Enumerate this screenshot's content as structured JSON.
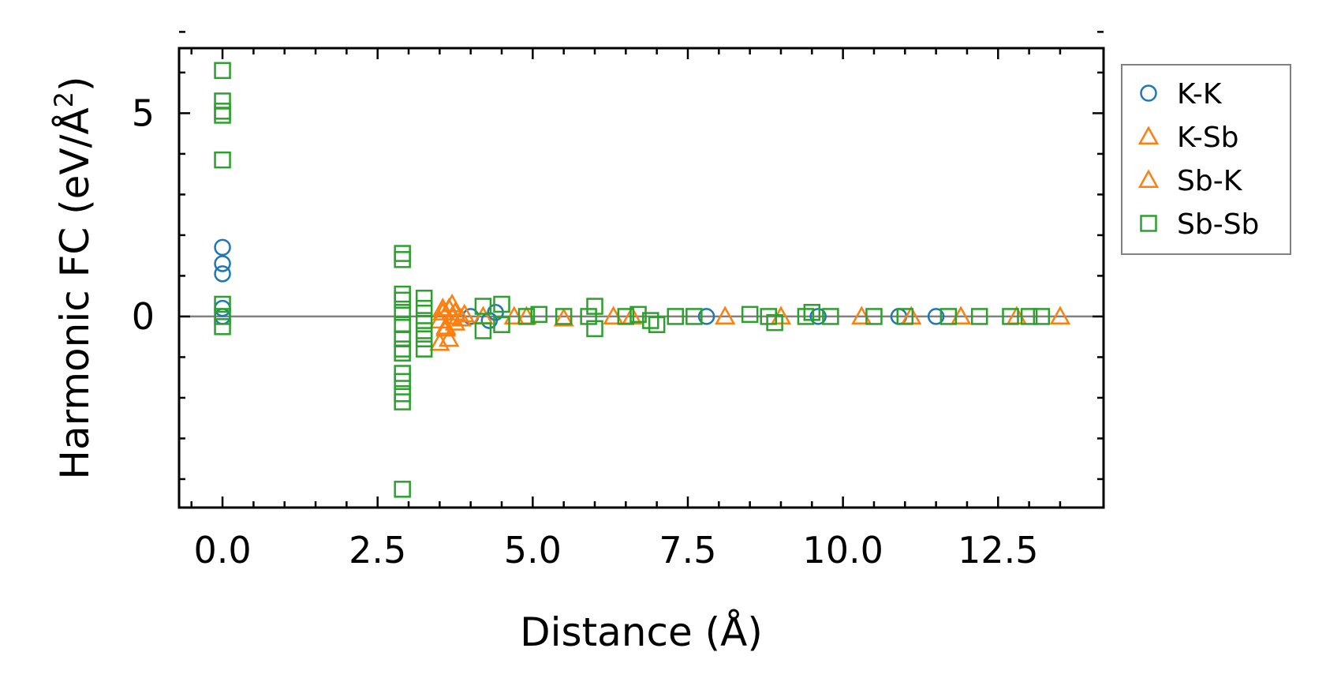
{
  "chart_data": {
    "type": "scatter",
    "title": "",
    "xlabel": "Distance (Å)",
    "ylabel_main": "Harmonic FC (eV/Å",
    "ylabel_sup": "2",
    "ylabel_close": ")",
    "xlim": [
      -0.7,
      14.2
    ],
    "ylim": [
      -4.7,
      6.6
    ],
    "x_ticks": [
      0.0,
      2.5,
      5.0,
      7.5,
      10.0,
      12.5
    ],
    "x_tick_labels": [
      "0.0",
      "2.5",
      "5.0",
      "7.5",
      "10.0",
      "12.5"
    ],
    "y_ticks": [
      0,
      5
    ],
    "y_tick_labels": [
      "0",
      "5"
    ],
    "grid": false,
    "zero_line": true,
    "legend_position": "outside-right-top",
    "series": [
      {
        "name": "K-K",
        "marker": "circle",
        "color": "#1f77b4",
        "points": [
          [
            0,
            1.7
          ],
          [
            0,
            1.3
          ],
          [
            0,
            1.05
          ],
          [
            0,
            0.2
          ],
          [
            0,
            0.0
          ],
          [
            4.0,
            0.0
          ],
          [
            4.3,
            -0.1
          ],
          [
            4.4,
            0.1
          ],
          [
            7.8,
            0.0
          ],
          [
            9.6,
            0.0
          ],
          [
            10.9,
            0.0
          ],
          [
            11.5,
            0.0
          ]
        ]
      },
      {
        "name": "K-Sb",
        "marker": "triangle",
        "color": "#ff7f0e",
        "points": [
          [
            3.5,
            -0.1
          ],
          [
            3.55,
            0.1
          ],
          [
            3.6,
            -0.25
          ],
          [
            3.65,
            0.2
          ],
          [
            3.7,
            0.0
          ],
          [
            3.75,
            -0.15
          ],
          [
            3.5,
            -0.65
          ],
          [
            3.65,
            -0.55
          ],
          [
            3.9,
            0.05
          ],
          [
            4.7,
            0.0
          ],
          [
            5.5,
            -0.05
          ],
          [
            6.3,
            0.0
          ],
          [
            8.1,
            0.0
          ],
          [
            10.3,
            0.0
          ],
          [
            11.9,
            0.0
          ]
        ]
      },
      {
        "name": "Sb-K",
        "marker": "triangle",
        "color": "#ff7f0e",
        "points": [
          [
            3.55,
            0.2
          ],
          [
            3.7,
            0.3
          ],
          [
            3.6,
            -0.3
          ],
          [
            3.75,
            0.1
          ],
          [
            3.85,
            -0.05
          ],
          [
            4.2,
            0.0
          ],
          [
            4.9,
            0.0
          ],
          [
            6.6,
            0.0
          ],
          [
            9.0,
            0.0
          ],
          [
            11.1,
            0.0
          ],
          [
            12.8,
            0.0
          ],
          [
            13.5,
            0.0
          ]
        ]
      },
      {
        "name": "Sb-Sb",
        "marker": "square",
        "color": "#2ca02c",
        "points": [
          [
            0,
            6.05
          ],
          [
            0,
            5.3
          ],
          [
            0,
            5.05
          ],
          [
            0,
            4.95
          ],
          [
            0,
            3.85
          ],
          [
            0,
            0.3
          ],
          [
            0,
            0.0
          ],
          [
            0,
            -0.25
          ],
          [
            2.9,
            1.55
          ],
          [
            2.9,
            1.4
          ],
          [
            2.9,
            0.55
          ],
          [
            2.9,
            0.4
          ],
          [
            2.9,
            0.1
          ],
          [
            2.9,
            -0.2
          ],
          [
            2.9,
            -0.55
          ],
          [
            2.9,
            -0.8
          ],
          [
            2.9,
            -0.9
          ],
          [
            2.9,
            -1.4
          ],
          [
            2.9,
            -1.6
          ],
          [
            2.9,
            -1.9
          ],
          [
            2.9,
            -2.1
          ],
          [
            2.9,
            -4.25
          ],
          [
            3.25,
            0.45
          ],
          [
            3.25,
            0.2
          ],
          [
            3.25,
            -0.1
          ],
          [
            3.25,
            -0.35
          ],
          [
            3.25,
            -0.55
          ],
          [
            3.25,
            -0.8
          ],
          [
            4.2,
            0.25
          ],
          [
            4.2,
            -0.35
          ],
          [
            4.5,
            0.3
          ],
          [
            4.5,
            -0.2
          ],
          [
            4.9,
            0.0
          ],
          [
            5.1,
            0.05
          ],
          [
            5.5,
            0.0
          ],
          [
            5.9,
            0.0
          ],
          [
            6.0,
            0.25
          ],
          [
            6.0,
            -0.3
          ],
          [
            6.5,
            0.0
          ],
          [
            6.7,
            0.05
          ],
          [
            6.9,
            -0.1
          ],
          [
            7.0,
            -0.2
          ],
          [
            7.3,
            0.0
          ],
          [
            7.6,
            0.0
          ],
          [
            8.5,
            0.05
          ],
          [
            8.8,
            0.0
          ],
          [
            8.9,
            -0.15
          ],
          [
            9.4,
            0.0
          ],
          [
            9.5,
            0.1
          ],
          [
            9.8,
            0.0
          ],
          [
            10.5,
            0.0
          ],
          [
            11.0,
            0.0
          ],
          [
            11.7,
            0.0
          ],
          [
            12.2,
            0.0
          ],
          [
            12.7,
            0.0
          ],
          [
            13.0,
            0.0
          ],
          [
            13.2,
            0.0
          ]
        ]
      }
    ]
  }
}
